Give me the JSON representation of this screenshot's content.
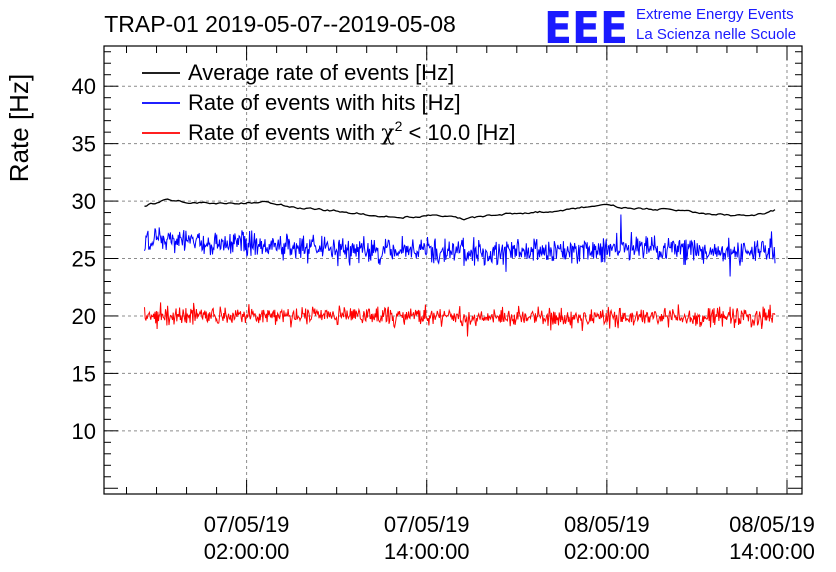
{
  "chart_data": {
    "type": "line",
    "title": "TRAP-01 2019-05-07--2019-05-08",
    "ylabel": "Rate [Hz]",
    "xlabel": "",
    "ylim": [
      4.5,
      43.5
    ],
    "xlim_hours": [
      -9.5,
      37.0
    ],
    "grid": true,
    "yticks": [
      10,
      15,
      20,
      25,
      30,
      35,
      40
    ],
    "xticks": [
      {
        "hours": 0,
        "date": "07/05/19",
        "time": "02:00:00"
      },
      {
        "hours": 12,
        "date": "07/05/19",
        "time": "14:00:00"
      },
      {
        "hours": 24,
        "date": "08/05/19",
        "time": "02:00:00"
      },
      {
        "hours": 36,
        "date": "08/05/19",
        "time": "14:00:00"
      }
    ],
    "time_range_hours": [
      -6.8,
      35.2
    ],
    "legend_position": "top-left",
    "series": [
      {
        "name": "Average rate of events [Hz]",
        "color": "#000000",
        "style": "smooth",
        "anchors": [
          [
            -6.8,
            29.6
          ],
          [
            -5.3,
            30.1
          ],
          [
            -3.4,
            29.9
          ],
          [
            -1.0,
            29.8
          ],
          [
            1.5,
            29.9
          ],
          [
            3.5,
            29.4
          ],
          [
            5.3,
            29.2
          ],
          [
            7.0,
            29.0
          ],
          [
            8.5,
            28.8
          ],
          [
            10.4,
            28.6
          ],
          [
            12.2,
            28.8
          ],
          [
            14.5,
            28.4
          ],
          [
            16.6,
            28.8
          ],
          [
            18.5,
            29.0
          ],
          [
            20.6,
            29.1
          ],
          [
            22.3,
            29.4
          ],
          [
            24.0,
            29.6
          ],
          [
            25.9,
            29.3
          ],
          [
            27.8,
            29.3
          ],
          [
            30.1,
            29.0
          ],
          [
            32.6,
            28.7
          ],
          [
            34.4,
            28.9
          ],
          [
            35.2,
            29.2
          ]
        ],
        "noise": 0.15
      },
      {
        "name": "Rate of events with hits [Hz]",
        "color": "#0000ff",
        "style": "noisy",
        "anchors": [
          [
            -6.8,
            26.5
          ],
          [
            -3.0,
            26.5
          ],
          [
            2.0,
            26.1
          ],
          [
            8.0,
            25.7
          ],
          [
            14.0,
            25.5
          ],
          [
            20.0,
            25.6
          ],
          [
            26.0,
            25.9
          ],
          [
            32.0,
            25.6
          ],
          [
            35.2,
            25.8
          ]
        ],
        "noise": 1.0
      },
      {
        "name": "Rate of events with χ² < 10.0 [Hz]",
        "legend_prefix": "Rate of events with ",
        "legend_symbol": "χ",
        "legend_superscript": "2",
        "legend_suffix": " < 10.0 [Hz]",
        "color": "#ff0000",
        "style": "noisy",
        "anchors": [
          [
            -6.8,
            20.0
          ],
          [
            10.0,
            20.0
          ],
          [
            20.0,
            19.8
          ],
          [
            35.2,
            20.0
          ]
        ],
        "noise": 0.75
      }
    ]
  },
  "logo": {
    "text": "EEE",
    "line1": "Extreme Energy Events",
    "line2": "La Scienza nelle Scuole",
    "color": "#1a1aff"
  }
}
